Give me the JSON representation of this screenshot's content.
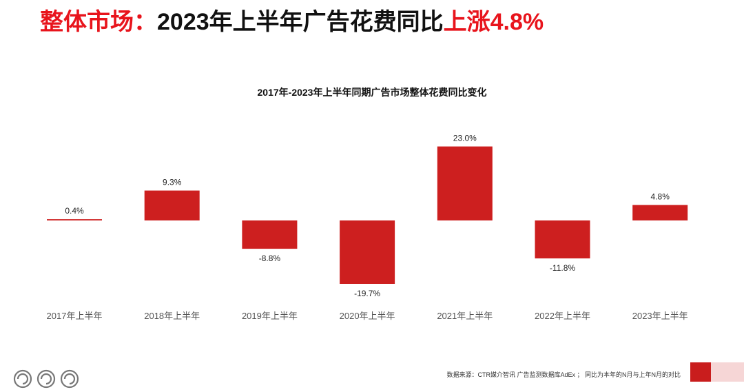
{
  "headline": {
    "part1": "整体市场：",
    "part2": "2023年上半年广告花费同比",
    "part3": "上涨4.8%"
  },
  "footer": {
    "source": "数据来源：CTR媒介智讯 广告监测数据库AdEx ； 同比为本年的N月与上年N月的对比"
  },
  "colors": {
    "bar": "#cd1f1f",
    "headline_accent": "#e8141c"
  },
  "chart_data": {
    "type": "bar",
    "title": "2017年-2023年上半年同期广告市场整体花费同比变化",
    "categories": [
      "2017年上半年",
      "2018年上半年",
      "2019年上半年",
      "2020年上半年",
      "2021年上半年",
      "2022年上半年",
      "2023年上半年"
    ],
    "values": [
      0.4,
      9.3,
      -8.8,
      -19.7,
      23.0,
      -11.8,
      4.8
    ],
    "labels": [
      "0.4%",
      "9.3%",
      "-8.8%",
      "-19.7%",
      "23.0%",
      "-11.8%",
      "4.8%"
    ],
    "unit": "%",
    "grid": false,
    "legend": "none"
  }
}
